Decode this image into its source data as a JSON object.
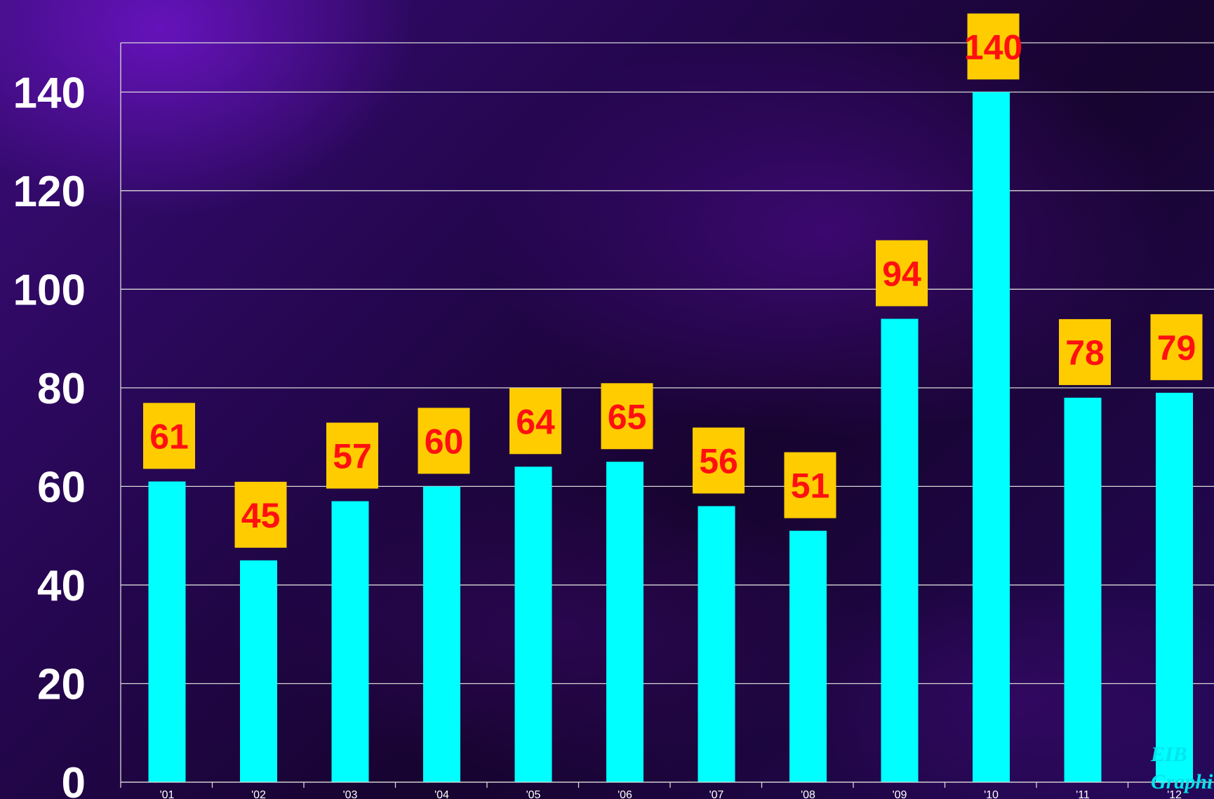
{
  "chart_data": {
    "type": "bar",
    "title": "",
    "xlabel": "",
    "ylabel": "",
    "categories": [
      "'01",
      "'02",
      "'03",
      "'04",
      "'05",
      "'06",
      "'07",
      "'08",
      "'09",
      "'10",
      "'11",
      "'12"
    ],
    "values": [
      61,
      45,
      57,
      60,
      64,
      65,
      56,
      51,
      94,
      140,
      78,
      79
    ],
    "ylim": [
      0,
      150
    ],
    "yticks": [
      0,
      20,
      40,
      60,
      80,
      100,
      120,
      140
    ],
    "grid": true,
    "legend": "none",
    "colors": {
      "bar": "#00ffff",
      "label_box": "#ffcc00",
      "label_text": "#ff1010",
      "gridline": "#d8d8d8",
      "tick_text": "#ffffff"
    }
  },
  "watermark": {
    "line1": "EIB",
    "line2": "Graphi"
  }
}
